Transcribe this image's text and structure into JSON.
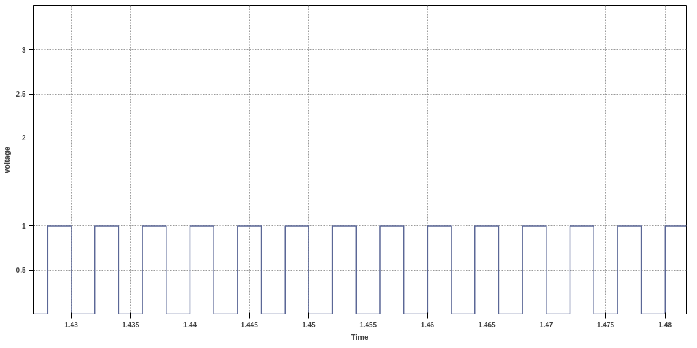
{
  "chart_data": {
    "type": "step",
    "xlabel": "Time",
    "ylabel": "voltage",
    "series": [
      {
        "color": "#5b6796",
        "x": [
          1.4268,
          1.428,
          1.43,
          1.432,
          1.434,
          1.436,
          1.438,
          1.44,
          1.442,
          1.444,
          1.446,
          1.448,
          1.45,
          1.452,
          1.454,
          1.456,
          1.458,
          1.46,
          1.462,
          1.464,
          1.466,
          1.468,
          1.47,
          1.472,
          1.474,
          1.476,
          1.478,
          1.48,
          1.4818
        ],
        "values": [
          0,
          1,
          0,
          1,
          0,
          1,
          0,
          1,
          0,
          1,
          0,
          1,
          0,
          1,
          0,
          1,
          0,
          1,
          0,
          1,
          0,
          1,
          0,
          1,
          0,
          1,
          0,
          1,
          1
        ]
      }
    ],
    "xlim": [
      1.4268,
      1.4818
    ],
    "ylim": [
      0,
      3.5
    ],
    "xticks": [
      1.43,
      1.435,
      1.44,
      1.445,
      1.45,
      1.455,
      1.46,
      1.465,
      1.47,
      1.475,
      1.48
    ],
    "yticks": [
      0.5,
      1,
      {
        "value": 1.5,
        "label": null
      },
      2,
      2.5,
      3
    ],
    "grid": true
  }
}
